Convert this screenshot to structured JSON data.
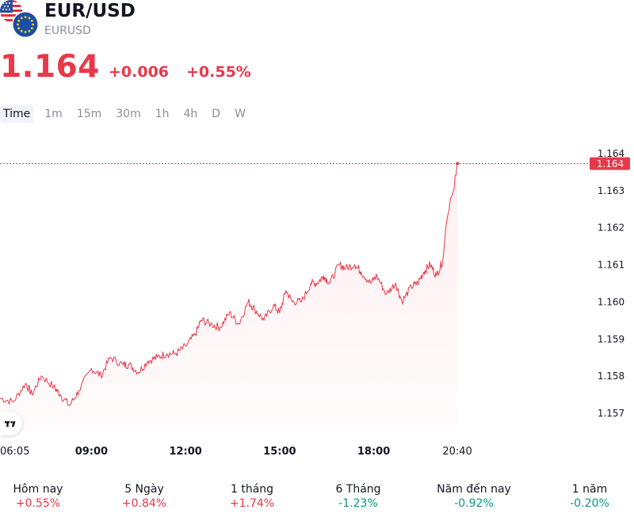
{
  "symbol": {
    "name": "EUR/USD",
    "ticker": "EURUSD",
    "price": "1.164",
    "change": "+0.006",
    "change_percent": "+0.55%",
    "color": "#e8394a"
  },
  "flags": {
    "primary": "us-flag-icon",
    "secondary": "eu-flag-icon"
  },
  "timeframes": [
    {
      "label": "Time",
      "active": true
    },
    {
      "label": "1m",
      "active": false
    },
    {
      "label": "15m",
      "active": false
    },
    {
      "label": "30m",
      "active": false
    },
    {
      "label": "1h",
      "active": false
    },
    {
      "label": "4h",
      "active": false
    },
    {
      "label": "D",
      "active": false
    },
    {
      "label": "W",
      "active": false
    }
  ],
  "chart_data": {
    "type": "line",
    "title": "",
    "xlabel": "",
    "ylabel": "",
    "line_color": "#e8394a",
    "grid": false,
    "x_ticks": [
      {
        "label": "06:05",
        "hour": 6.083,
        "bold": false
      },
      {
        "label": "09:00",
        "hour": 9.0,
        "bold": true
      },
      {
        "label": "12:00",
        "hour": 12.0,
        "bold": true
      },
      {
        "label": "15:00",
        "hour": 15.0,
        "bold": true
      },
      {
        "label": "18:00",
        "hour": 18.0,
        "bold": true
      },
      {
        "label": "20:40",
        "hour": 20.667,
        "bold": false
      }
    ],
    "y_ticks": [
      "1.164",
      "1.163",
      "1.162",
      "1.161",
      "1.160",
      "1.159",
      "1.158",
      "1.157"
    ],
    "xlim": [
      6.083,
      26.3
    ],
    "ylim": [
      1.1565,
      1.1645
    ],
    "last_price_label": "1.164",
    "last_price_value": 1.16372,
    "series": [
      {
        "x": [
          6.08,
          6.5,
          6.9,
          7.1,
          7.4,
          7.8,
          8.0,
          8.3,
          8.6,
          9.0,
          9.3,
          9.6,
          10.0,
          10.2,
          10.5,
          10.8,
          11.1,
          11.4,
          11.7,
          12.0,
          12.3,
          12.5,
          12.8,
          13.1,
          13.4,
          13.7,
          14.0,
          14.2,
          14.5,
          14.8,
          15.0,
          15.2,
          15.4,
          15.7,
          16.0,
          16.2,
          16.4,
          16.6,
          16.9,
          17.1,
          17.4,
          17.6,
          17.9,
          18.1,
          18.4,
          18.7,
          18.9,
          19.2,
          19.4,
          19.6,
          19.8,
          20.0,
          20.2,
          20.3,
          20.45,
          20.55,
          20.6,
          20.67
        ],
        "y": [
          1.1574,
          1.1573,
          1.1578,
          1.1575,
          1.158,
          1.1577,
          1.1575,
          1.1572,
          1.1576,
          1.1582,
          1.158,
          1.1585,
          1.1583,
          1.1583,
          1.1581,
          1.1584,
          1.1585,
          1.1586,
          1.1586,
          1.1588,
          1.1591,
          1.1595,
          1.1594,
          1.1593,
          1.1597,
          1.1594,
          1.16,
          1.1598,
          1.1595,
          1.1599,
          1.1597,
          1.1603,
          1.16,
          1.16,
          1.1605,
          1.1605,
          1.1607,
          1.1605,
          1.161,
          1.1609,
          1.161,
          1.1608,
          1.1605,
          1.1607,
          1.1602,
          1.1605,
          1.16,
          1.1604,
          1.1605,
          1.1608,
          1.161,
          1.1607,
          1.1611,
          1.162,
          1.1628,
          1.163,
          1.1634,
          1.16372
        ]
      }
    ]
  },
  "performance": [
    {
      "label": "Hôm nay",
      "value": "+0.55%",
      "trend": "up"
    },
    {
      "label": "5 Ngày",
      "value": "+0.84%",
      "trend": "up"
    },
    {
      "label": "1 tháng",
      "value": "+1.74%",
      "trend": "up"
    },
    {
      "label": "6 Tháng",
      "value": "-1.23%",
      "trend": "down"
    },
    {
      "label": "Năm đến nay",
      "value": "-0.92%",
      "trend": "down"
    },
    {
      "label": "1 năm",
      "value": "-0.20%",
      "trend": "down"
    }
  ]
}
